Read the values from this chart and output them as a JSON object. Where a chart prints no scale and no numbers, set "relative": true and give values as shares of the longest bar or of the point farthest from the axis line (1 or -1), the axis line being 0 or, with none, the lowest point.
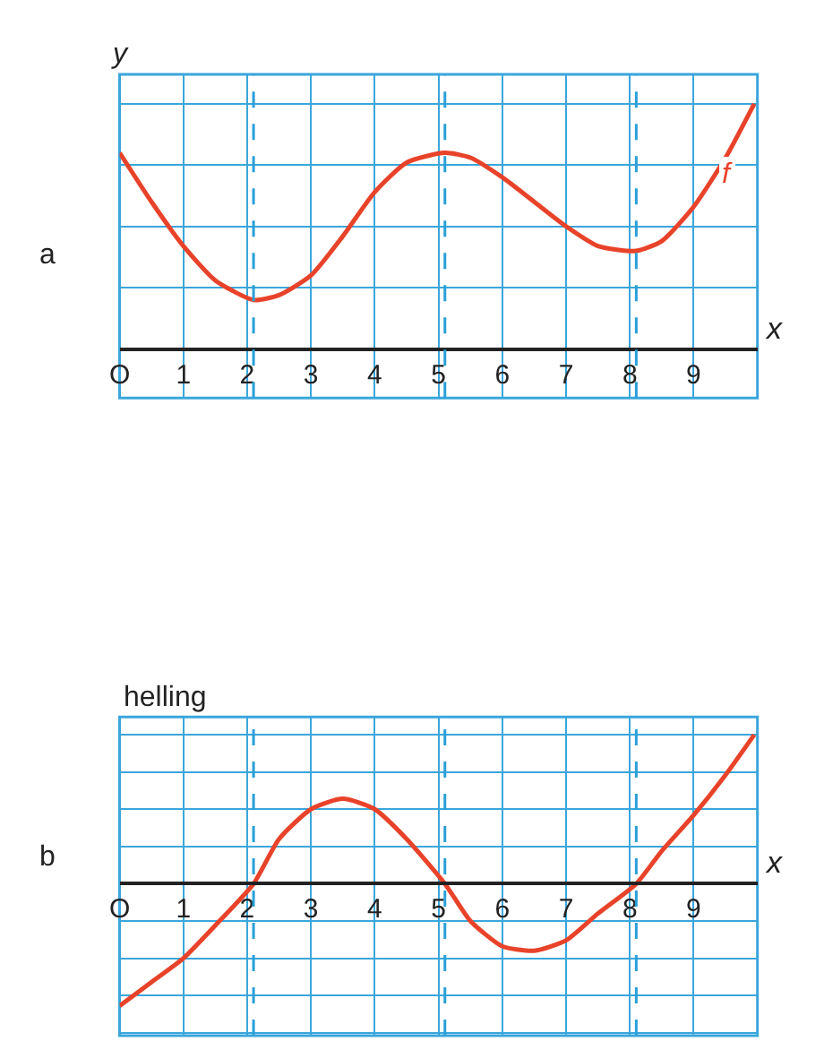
{
  "chart_data": [
    {
      "type": "line",
      "relative": true,
      "xlabel": "x",
      "ylabel": "y",
      "annotations": [
        "a"
      ],
      "grid": true,
      "legend": false,
      "line_style": "solid",
      "marker": "none",
      "xlim": [
        0,
        10
      ],
      "xticks": [
        {
          "value": 0,
          "label": "O"
        },
        1,
        2,
        3,
        4,
        5,
        6,
        7,
        8,
        9
      ],
      "x": [
        0,
        0.5,
        1,
        1.5,
        2.1,
        2.5,
        3,
        3.5,
        4,
        4.5,
        5.1,
        5.5,
        6,
        6.5,
        7,
        7.5,
        8.1,
        8.5,
        9,
        9.5,
        9.95
      ],
      "series": [
        {
          "name": "f",
          "color": "#e8432a",
          "values": [
            0.8,
            0.6,
            0.42,
            0.28,
            0.2,
            0.22,
            0.3,
            0.46,
            0.64,
            0.76,
            0.8,
            0.78,
            0.7,
            0.6,
            0.5,
            0.42,
            0.4,
            0.44,
            0.58,
            0.78,
            1.0
          ]
        }
      ],
      "ref_lines": [
        {
          "axis": "x",
          "value": 2.1,
          "line_style": "dashed",
          "color": "#2aa0d8"
        },
        {
          "axis": "x",
          "value": 5.1,
          "line_style": "dashed",
          "color": "#2aa0d8"
        },
        {
          "axis": "x",
          "value": 8.1,
          "line_style": "dashed",
          "color": "#2aa0d8"
        }
      ]
    },
    {
      "type": "line",
      "relative": true,
      "xlabel": "x",
      "ylabel": "helling",
      "annotations": [
        "b"
      ],
      "grid": true,
      "legend": false,
      "line_style": "solid",
      "marker": "none",
      "xlim": [
        0,
        10
      ],
      "xticks": [
        {
          "value": 0,
          "label": "O"
        },
        1,
        2,
        3,
        4,
        5,
        6,
        7,
        8,
        9
      ],
      "x": [
        0,
        0.5,
        1,
        1.5,
        2.1,
        2.5,
        3,
        3.5,
        4,
        4.5,
        5.1,
        5.5,
        6,
        6.5,
        7,
        7.5,
        8.1,
        8.5,
        9,
        9.5,
        9.95
      ],
      "series": [
        {
          "color": "#e8432a",
          "values": [
            -0.82,
            -0.66,
            -0.5,
            -0.28,
            0.0,
            0.3,
            0.5,
            0.57,
            0.5,
            0.3,
            0.0,
            -0.25,
            -0.42,
            -0.45,
            -0.38,
            -0.2,
            0.0,
            0.22,
            0.46,
            0.73,
            1.0
          ]
        }
      ],
      "ref_lines": [
        {
          "axis": "x",
          "value": 2.1,
          "line_style": "dashed",
          "color": "#2aa0d8"
        },
        {
          "axis": "x",
          "value": 5.1,
          "line_style": "dashed",
          "color": "#2aa0d8"
        },
        {
          "axis": "x",
          "value": 8.1,
          "line_style": "dashed",
          "color": "#2aa0d8"
        }
      ]
    }
  ]
}
